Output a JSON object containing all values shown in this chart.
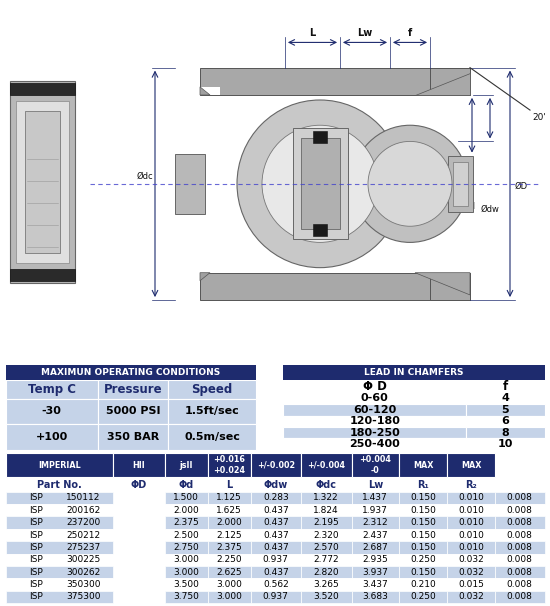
{
  "bg_color": "#ffffff",
  "op_conditions_header": "MAXIMUN OPERATING CONDITIONS",
  "op_conditions_subheaders": [
    "Temp C",
    "Pressure",
    "Speed"
  ],
  "op_conditions_data": [
    [
      "-30",
      "5000 PSI",
      "1.5ft/sec"
    ],
    [
      "+100",
      "350 BAR",
      "0.5m/sec"
    ]
  ],
  "chamfer_header": "LEAD IN CHAMFERS",
  "chamfer_subheaders": [
    "Φ D",
    "f"
  ],
  "chamfer_data": [
    [
      "0-60",
      "4"
    ],
    [
      "60-120",
      "5"
    ],
    [
      "120-180",
      "6"
    ],
    [
      "180-250",
      "8"
    ],
    [
      "250-400",
      "10"
    ]
  ],
  "main_table_headers": [
    "IMPERIAL",
    "HII",
    "jsII",
    "+0.016\n+0.024",
    "+/-0.002",
    "+/-0.004",
    "+0.004\n-0",
    "MAX",
    "MAX"
  ],
  "main_table_subheaders": [
    "Part No.",
    "ΦD",
    "Φd",
    "L",
    "Φdw",
    "Φdc",
    "Lw",
    "R₁",
    "R₂"
  ],
  "main_table_data": [
    [
      "ISP",
      "150112",
      "1.500",
      "1.125",
      "0.283",
      "1.322",
      "1.437",
      "0.150",
      "0.010",
      "0.008"
    ],
    [
      "ISP",
      "200162",
      "2.000",
      "1.625",
      "0.437",
      "1.824",
      "1.937",
      "0.150",
      "0.010",
      "0.008"
    ],
    [
      "ISP",
      "237200",
      "2.375",
      "2.000",
      "0.437",
      "2.195",
      "2.312",
      "0.150",
      "0.010",
      "0.008"
    ],
    [
      "ISP",
      "250212",
      "2.500",
      "2.125",
      "0.437",
      "2.320",
      "2.437",
      "0.150",
      "0.010",
      "0.008"
    ],
    [
      "ISP",
      "275237",
      "2.750",
      "2.375",
      "0.437",
      "2.570",
      "2.687",
      "0.150",
      "0.010",
      "0.008"
    ],
    [
      "ISP",
      "300225",
      "3.000",
      "2.250",
      "0.937",
      "2.772",
      "2.935",
      "0.250",
      "0.032",
      "0.008"
    ],
    [
      "ISP",
      "300262",
      "3.000",
      "2.625",
      "0.437",
      "2.820",
      "3.937",
      "0.150",
      "0.032",
      "0.008"
    ],
    [
      "ISP",
      "350300",
      "3.500",
      "3.000",
      "0.562",
      "3.265",
      "3.437",
      "0.210",
      "0.015",
      "0.008"
    ],
    [
      "ISP",
      "375300",
      "3.750",
      "3.000",
      "0.937",
      "3.520",
      "3.683",
      "0.250",
      "0.032",
      "0.008"
    ]
  ],
  "header_bg": "#1e2b6e",
  "header_fg": "#ffffff",
  "row_alt_blue": "#c5d3e8",
  "row_white": "#ffffff",
  "subheader_fg": "#1e2b6e",
  "data_fg": "#000000"
}
